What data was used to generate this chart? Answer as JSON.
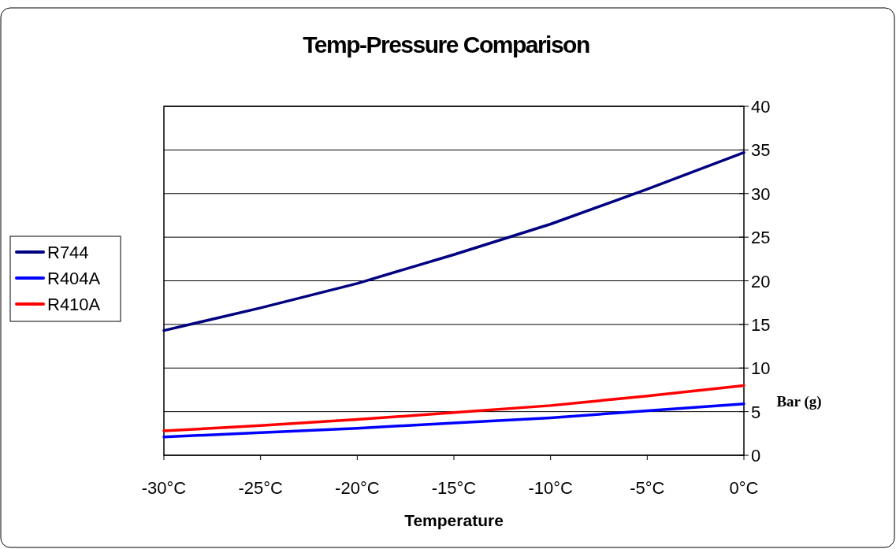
{
  "chart_data": {
    "type": "line",
    "title": "Temp-Pressure Comparison",
    "xlabel": "Temperature",
    "ylabel": "Bar (g)",
    "categories": [
      "-30°C",
      "-25°C",
      "-20°C",
      "-15°C",
      "-10°C",
      "-5°C",
      "0°C"
    ],
    "series": [
      {
        "name": "R744",
        "color": "#000080",
        "values": [
          14.3,
          16.9,
          19.7,
          23.0,
          26.5,
          30.5,
          34.7
        ]
      },
      {
        "name": "R404A",
        "color": "#0000ff",
        "values": [
          2.1,
          2.6,
          3.1,
          3.7,
          4.3,
          5.1,
          5.9
        ]
      },
      {
        "name": "R410A",
        "color": "#ff0000",
        "values": [
          2.8,
          3.4,
          4.1,
          4.9,
          5.7,
          6.8,
          8.0
        ]
      }
    ],
    "ylim": [
      0,
      40
    ],
    "yticks": [
      0,
      5,
      10,
      15,
      20,
      25,
      30,
      35,
      40
    ],
    "grid": "y",
    "legend": "left",
    "marker": "none",
    "line_style": "solid"
  }
}
